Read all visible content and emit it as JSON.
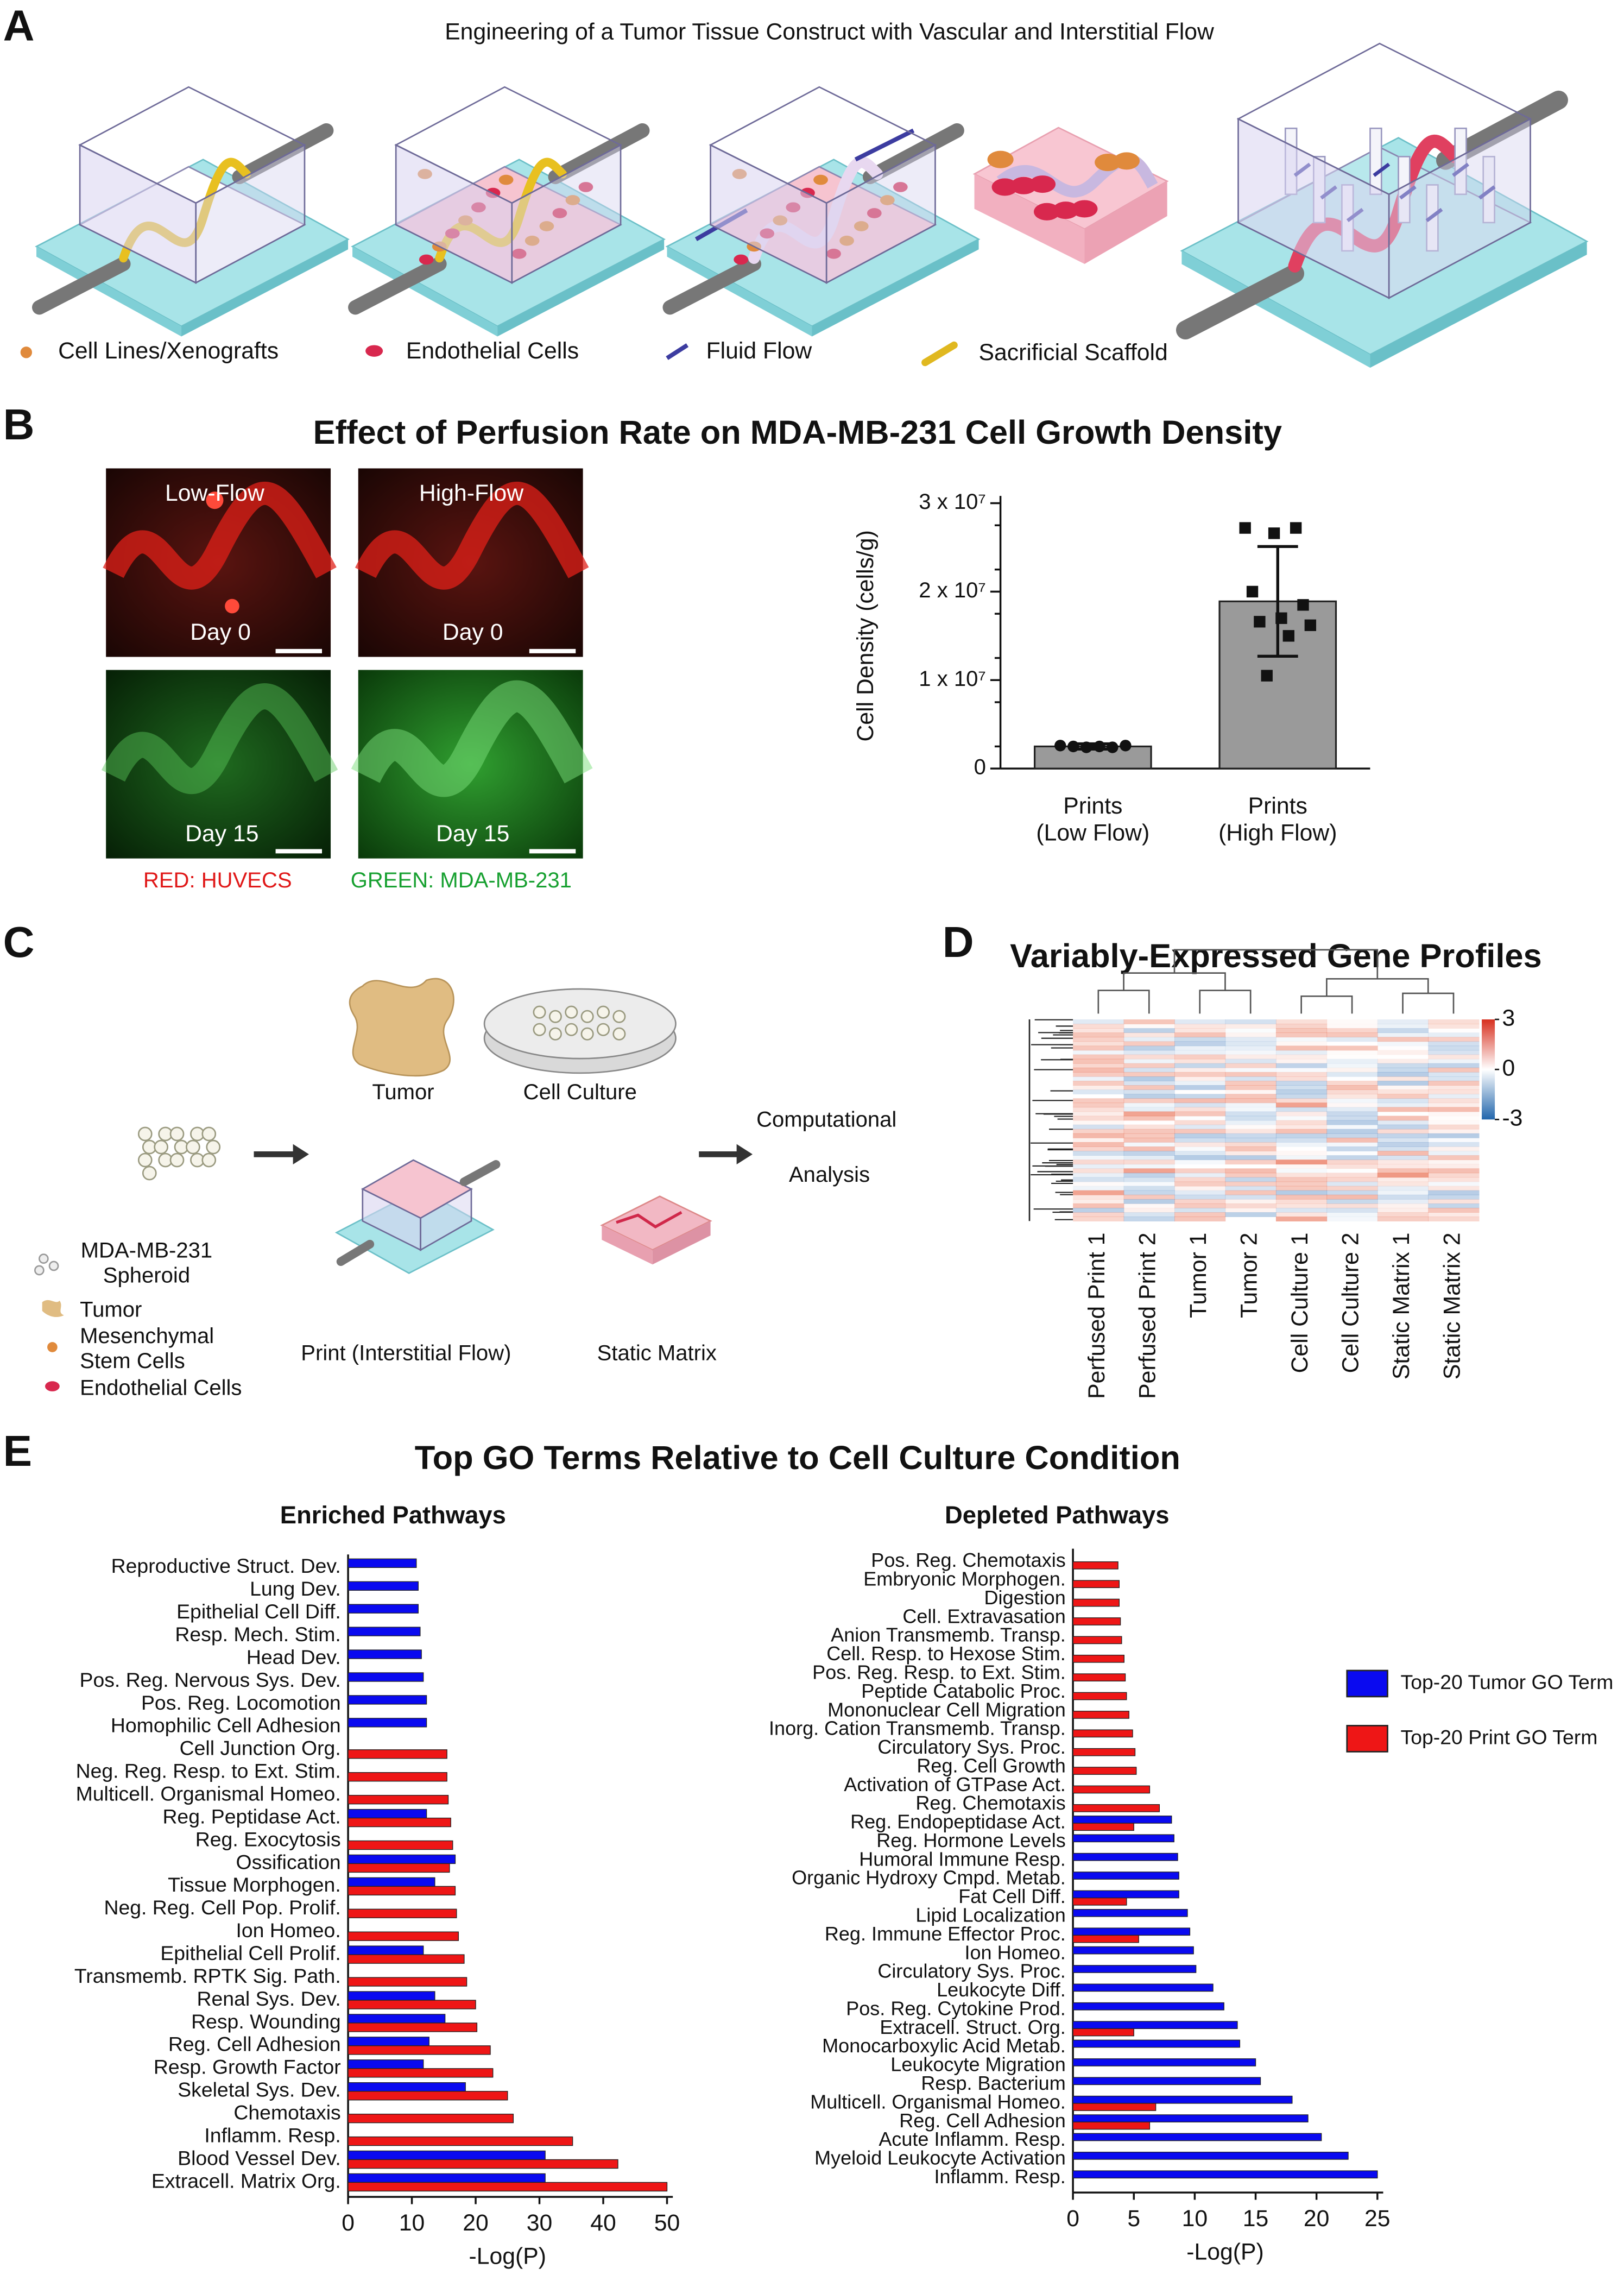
{
  "panel_labels": [
    "A",
    "B",
    "C",
    "D",
    "E"
  ],
  "panel_a": {
    "title": "Engineering of a Tumor Tissue Construct with Vascular and Interstitial Flow",
    "legend": [
      "Cell Lines/Xenografts",
      "Endothelial Cells",
      "Fluid Flow",
      "Sacrificial Scaffold"
    ]
  },
  "panel_b": {
    "title": "Effect of Perfusion Rate on MDA-MB-231 Cell Growth Density",
    "flows": [
      "Low-Flow",
      "High-Flow"
    ],
    "days": [
      "Day 0",
      "Day 0",
      "Day 15",
      "Day 15"
    ],
    "stains": [
      "RED: HUVECS",
      "GREEN: MDA-MB-231"
    ]
  },
  "panel_c": {
    "samples": [
      "Tumor",
      "Cell Culture",
      "Print (Interstitial Flow)",
      "Static Matrix"
    ],
    "output": [
      "Computational",
      "Analysis"
    ],
    "legend": [
      "MDA-MB-231\nSpheroid",
      "Tumor",
      "Mesenchymal\nStem Cells",
      "Endothelial Cells"
    ]
  },
  "panel_d": {
    "title": "Variably-Expressed Gene Profiles",
    "colorbar_ticks": [
      3,
      0,
      -3
    ],
    "columns": [
      "Perfused Print 1",
      "Perfused Print 2",
      "Tumor 1",
      "Tumor 2",
      "Cell Culture 1",
      "Cell Culture 2",
      "Static Matrix 1",
      "Static Matrix 2"
    ]
  },
  "panel_e": {
    "title": "Top GO Terms Relative to Cell Culture Condition"
  },
  "chart_data": [
    {
      "type": "bar",
      "ylabel": "Cell Density (cells/g)",
      "categories": [
        "Prints\n(Low Flow)",
        "Prints\n(High Flow)"
      ],
      "values": [
        2500000,
        18900000
      ],
      "errors": [
        300000,
        6200000
      ],
      "points": [
        [
          2600000,
          2500000,
          2400000,
          2500000,
          2400000,
          2600000
        ],
        [
          27200000,
          27200000,
          26600000,
          20000000,
          18500000,
          17000000,
          16600000,
          16200000,
          15000000,
          10500000
        ]
      ],
      "markers": [
        "circle",
        "square"
      ],
      "color": "#9a9a9a",
      "ylim": [
        0,
        30000000
      ],
      "yticks": [
        0,
        {
          "value": 10000000,
          "label": "1 x 10⁷"
        },
        {
          "value": 20000000,
          "label": "2 x 10⁷"
        },
        {
          "value": 30000000,
          "label": "3 x 10⁷"
        }
      ]
    },
    {
      "type": "barh",
      "subtitle": "Enriched Pathways",
      "xlabel": "-Log(P)",
      "categories": [
        "Reproductive Struct. Dev.",
        "Lung Dev.",
        "Epithelial Cell Diff.",
        "Resp. Mech. Stim.",
        "Head Dev.",
        "Pos. Reg. Nervous Sys. Dev.",
        "Pos. Reg. Locomotion",
        "Homophilic Cell Adhesion",
        "Cell Junction Org.",
        "Neg. Reg. Resp. to Ext. Stim.",
        "Multicell. Organismal Homeo.",
        "Reg. Peptidase Act.",
        "Reg. Exocytosis",
        "Ossification",
        "Tissue Morphogen.",
        "Neg. Reg. Cell Pop. Prolif.",
        "Ion Homeo.",
        "Epithelial Cell Prolif.",
        "Transmemb. RPTK Sig. Path.",
        "Renal Sys. Dev.",
        "Resp. Wounding",
        "Reg. Cell Adhesion",
        "Resp. Growth Factor",
        "Skeletal Sys. Dev.",
        "Chemotaxis",
        "Inflamm. Resp.",
        "Blood Vessel Dev.",
        "Extracell. Matrix Org."
      ],
      "series": [
        {
          "color": "#0a0af0",
          "values": [
            10.7,
            11,
            11,
            11.3,
            11.5,
            11.8,
            12.3,
            12.3,
            null,
            null,
            null,
            12.3,
            null,
            16.8,
            13.6,
            null,
            null,
            11.8,
            null,
            13.6,
            15.2,
            12.7,
            11.8,
            18.4,
            null,
            null,
            30.9,
            30.9
          ]
        },
        {
          "color": "#ee1616",
          "values": [
            null,
            null,
            null,
            null,
            null,
            null,
            null,
            null,
            15.5,
            15.5,
            15.7,
            16.1,
            16.4,
            15.9,
            16.8,
            17,
            17.3,
            18.2,
            18.6,
            20,
            20.2,
            22.3,
            22.7,
            25,
            25.9,
            35.2,
            42.3,
            50
          ]
        }
      ],
      "xlim": [
        0,
        50
      ],
      "xticks": [
        0,
        10,
        20,
        30,
        40,
        50
      ]
    },
    {
      "type": "barh",
      "subtitle": "Depleted Pathways",
      "xlabel": "-Log(P)",
      "categories": [
        "Pos. Reg. Chemotaxis",
        "Embryonic Morphogen.",
        "Digestion",
        "Cell. Extravasation",
        "Anion Transmemb. Transp.",
        "Cell. Resp. to Hexose Stim.",
        "Pos. Reg. Resp. to Ext. Stim.",
        "Peptide Catabolic Proc.",
        "Mononuclear Cell Migration",
        "Inorg. Cation Transmemb. Transp.",
        "Circulatory Sys. Proc.",
        "Reg. Cell Growth",
        "Activation of GTPase Act.",
        "Reg. Chemotaxis",
        "Reg. Endopeptidase Act.",
        "Reg. Hormone Levels",
        "Humoral Immune Resp.",
        "Organic Hydroxy Cmpd. Metab.",
        "Fat Cell Diff.",
        "Lipid Localization",
        "Reg. Immune Effector Proc.",
        "Ion Homeo.",
        "Circulatory Sys. Proc.",
        "Leukocyte Diff.",
        "Pos. Reg. Cytokine Prod.",
        "Extracell. Struct. Org.",
        "Monocarboxylic Acid Metab.",
        "Leukocyte Migration",
        "Resp. Bacterium",
        "Multicell. Organismal Homeo.",
        "Reg. Cell Adhesion",
        "Acute Inflamm. Resp.",
        "Myeloid Leukocyte Activation",
        "Inflamm. Resp."
      ],
      "series": [
        {
          "name": "Top-20 Tumor GO Term",
          "color": "#0a0af0",
          "values": [
            null,
            null,
            null,
            null,
            null,
            null,
            null,
            null,
            null,
            null,
            null,
            null,
            null,
            null,
            8.1,
            8.3,
            8.6,
            8.7,
            8.7,
            9.4,
            9.6,
            9.9,
            10.1,
            11.5,
            12.4,
            13.5,
            13.7,
            15.0,
            15.4,
            18.0,
            19.3,
            20.4,
            22.6,
            25.0
          ]
        },
        {
          "name": "Top-20 Print GO Term",
          "color": "#ee1616",
          "values": [
            3.7,
            3.8,
            3.8,
            3.9,
            4.0,
            4.2,
            4.3,
            4.4,
            4.6,
            4.9,
            5.1,
            5.2,
            6.3,
            7.1,
            5.0,
            null,
            null,
            null,
            4.4,
            null,
            5.4,
            null,
            null,
            null,
            null,
            5.0,
            null,
            null,
            null,
            6.8,
            6.3,
            null,
            null,
            null
          ]
        }
      ],
      "xlim": [
        0,
        25
      ],
      "xticks": [
        0,
        5,
        10,
        15,
        20,
        25
      ]
    }
  ]
}
